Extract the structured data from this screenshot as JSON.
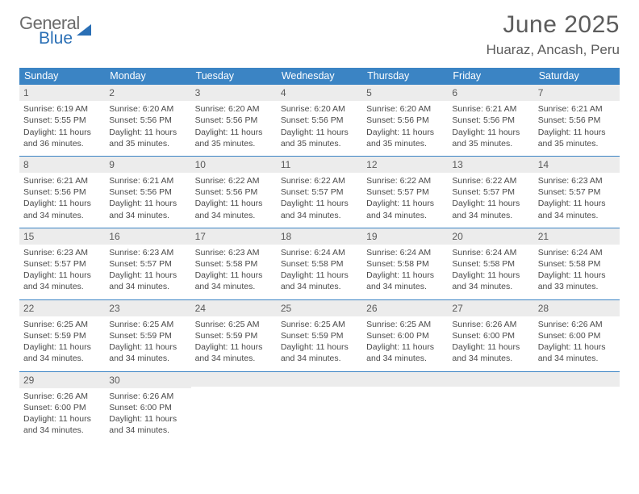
{
  "brand": {
    "part1": "General",
    "part2": "Blue"
  },
  "title": "June 2025",
  "location": "Huaraz, Ancash, Peru",
  "colors": {
    "header_blue": "#3b84c4",
    "logo_blue": "#2a6fb5",
    "daynum_bg": "#ececec",
    "text": "#4a4a4a"
  },
  "weekdays": [
    "Sunday",
    "Monday",
    "Tuesday",
    "Wednesday",
    "Thursday",
    "Friday",
    "Saturday"
  ],
  "weeks": [
    [
      {
        "n": "1",
        "sunrise": "6:19 AM",
        "sunset": "5:55 PM",
        "dl": "11 hours and 36 minutes."
      },
      {
        "n": "2",
        "sunrise": "6:20 AM",
        "sunset": "5:56 PM",
        "dl": "11 hours and 35 minutes."
      },
      {
        "n": "3",
        "sunrise": "6:20 AM",
        "sunset": "5:56 PM",
        "dl": "11 hours and 35 minutes."
      },
      {
        "n": "4",
        "sunrise": "6:20 AM",
        "sunset": "5:56 PM",
        "dl": "11 hours and 35 minutes."
      },
      {
        "n": "5",
        "sunrise": "6:20 AM",
        "sunset": "5:56 PM",
        "dl": "11 hours and 35 minutes."
      },
      {
        "n": "6",
        "sunrise": "6:21 AM",
        "sunset": "5:56 PM",
        "dl": "11 hours and 35 minutes."
      },
      {
        "n": "7",
        "sunrise": "6:21 AM",
        "sunset": "5:56 PM",
        "dl": "11 hours and 35 minutes."
      }
    ],
    [
      {
        "n": "8",
        "sunrise": "6:21 AM",
        "sunset": "5:56 PM",
        "dl": "11 hours and 34 minutes."
      },
      {
        "n": "9",
        "sunrise": "6:21 AM",
        "sunset": "5:56 PM",
        "dl": "11 hours and 34 minutes."
      },
      {
        "n": "10",
        "sunrise": "6:22 AM",
        "sunset": "5:56 PM",
        "dl": "11 hours and 34 minutes."
      },
      {
        "n": "11",
        "sunrise": "6:22 AM",
        "sunset": "5:57 PM",
        "dl": "11 hours and 34 minutes."
      },
      {
        "n": "12",
        "sunrise": "6:22 AM",
        "sunset": "5:57 PM",
        "dl": "11 hours and 34 minutes."
      },
      {
        "n": "13",
        "sunrise": "6:22 AM",
        "sunset": "5:57 PM",
        "dl": "11 hours and 34 minutes."
      },
      {
        "n": "14",
        "sunrise": "6:23 AM",
        "sunset": "5:57 PM",
        "dl": "11 hours and 34 minutes."
      }
    ],
    [
      {
        "n": "15",
        "sunrise": "6:23 AM",
        "sunset": "5:57 PM",
        "dl": "11 hours and 34 minutes."
      },
      {
        "n": "16",
        "sunrise": "6:23 AM",
        "sunset": "5:57 PM",
        "dl": "11 hours and 34 minutes."
      },
      {
        "n": "17",
        "sunrise": "6:23 AM",
        "sunset": "5:58 PM",
        "dl": "11 hours and 34 minutes."
      },
      {
        "n": "18",
        "sunrise": "6:24 AM",
        "sunset": "5:58 PM",
        "dl": "11 hours and 34 minutes."
      },
      {
        "n": "19",
        "sunrise": "6:24 AM",
        "sunset": "5:58 PM",
        "dl": "11 hours and 34 minutes."
      },
      {
        "n": "20",
        "sunrise": "6:24 AM",
        "sunset": "5:58 PM",
        "dl": "11 hours and 34 minutes."
      },
      {
        "n": "21",
        "sunrise": "6:24 AM",
        "sunset": "5:58 PM",
        "dl": "11 hours and 33 minutes."
      }
    ],
    [
      {
        "n": "22",
        "sunrise": "6:25 AM",
        "sunset": "5:59 PM",
        "dl": "11 hours and 34 minutes."
      },
      {
        "n": "23",
        "sunrise": "6:25 AM",
        "sunset": "5:59 PM",
        "dl": "11 hours and 34 minutes."
      },
      {
        "n": "24",
        "sunrise": "6:25 AM",
        "sunset": "5:59 PM",
        "dl": "11 hours and 34 minutes."
      },
      {
        "n": "25",
        "sunrise": "6:25 AM",
        "sunset": "5:59 PM",
        "dl": "11 hours and 34 minutes."
      },
      {
        "n": "26",
        "sunrise": "6:25 AM",
        "sunset": "6:00 PM",
        "dl": "11 hours and 34 minutes."
      },
      {
        "n": "27",
        "sunrise": "6:26 AM",
        "sunset": "6:00 PM",
        "dl": "11 hours and 34 minutes."
      },
      {
        "n": "28",
        "sunrise": "6:26 AM",
        "sunset": "6:00 PM",
        "dl": "11 hours and 34 minutes."
      }
    ],
    [
      {
        "n": "29",
        "sunrise": "6:26 AM",
        "sunset": "6:00 PM",
        "dl": "11 hours and 34 minutes."
      },
      {
        "n": "30",
        "sunrise": "6:26 AM",
        "sunset": "6:00 PM",
        "dl": "11 hours and 34 minutes."
      },
      null,
      null,
      null,
      null,
      null
    ]
  ],
  "labels": {
    "sunrise": "Sunrise:",
    "sunset": "Sunset:",
    "daylight": "Daylight:"
  }
}
